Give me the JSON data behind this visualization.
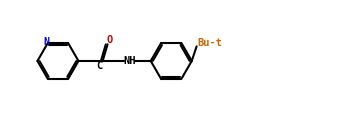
{
  "background": "#ffffff",
  "line_color": "#000000",
  "line_width": 1.5,
  "N_color": "#0000cc",
  "O_color": "#cc0000",
  "text_color": "#000000",
  "Bu_color": "#cc6600",
  "figsize": [
    3.63,
    1.19
  ],
  "dpi": 100,
  "xlim": [
    0,
    36.3
  ],
  "ylim": [
    0,
    11.9
  ]
}
